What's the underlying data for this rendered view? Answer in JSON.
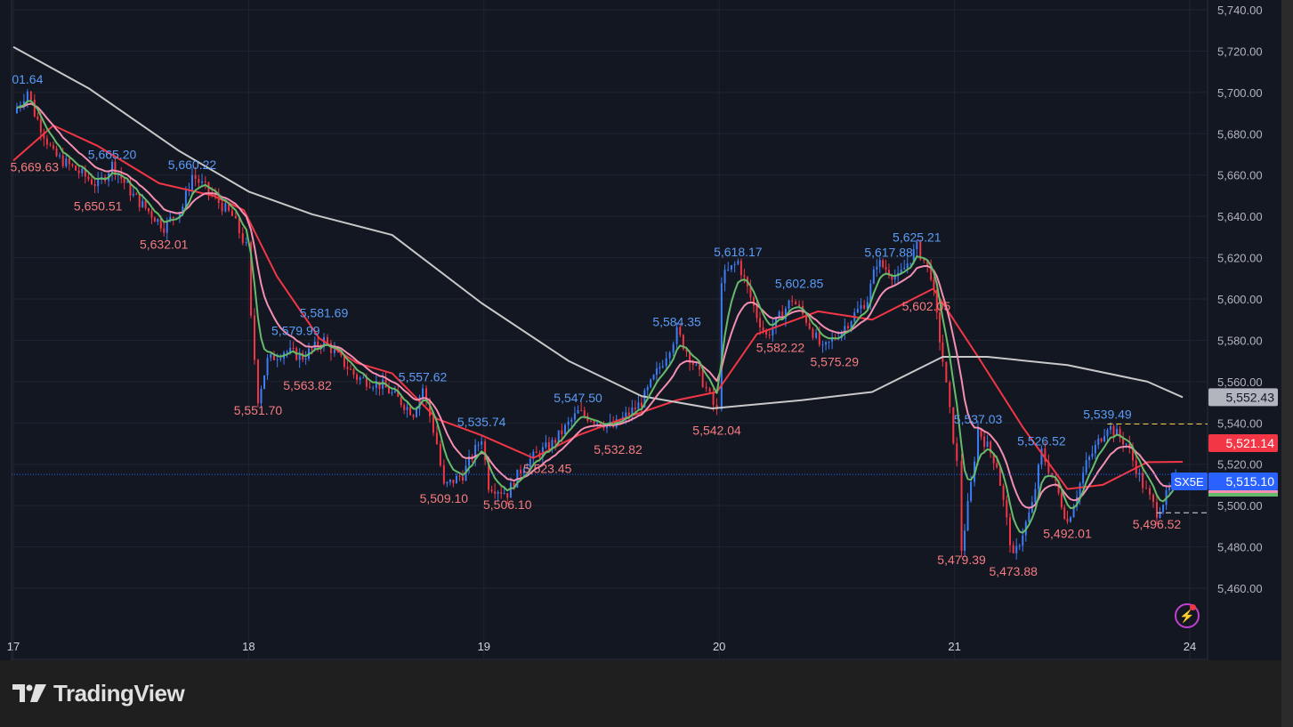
{
  "brand": "TradingView",
  "symbol": "SX5E",
  "colors": {
    "background": "#131722",
    "up": "#3d7df5",
    "down": "#f23645",
    "ma_fast": "#66bb6a",
    "ma_mid": "#f48fb1",
    "ma_slow": "#f23645",
    "ma_long": "#c8c8c8",
    "high_label": "#5b9cf6",
    "low_label": "#f77c80",
    "grid": "#1f2430"
  },
  "chart_data": {
    "type": "candlestick",
    "title": "",
    "xlabel": "",
    "ylabel": "",
    "x_ticks": [
      "17",
      "18",
      "19",
      "20",
      "21",
      "24"
    ],
    "y_ticks": [
      5460,
      5480,
      5500,
      5520,
      5540,
      5560,
      5580,
      5600,
      5620,
      5640,
      5660,
      5680,
      5700,
      5720,
      5740
    ],
    "y_tick_labels": [
      "5,460.00",
      "5,480.00",
      "5,500.00",
      "5,520.00",
      "5,540.00",
      "5,560.00",
      "5,580.00",
      "5,600.00",
      "5,620.00",
      "5,640.00",
      "5,660.00",
      "5,680.00",
      "5,700.00",
      "5,720.00",
      "5,740.00"
    ],
    "ylim": [
      5451,
      5745
    ],
    "grid": true,
    "price_path": [
      [
        17.0,
        5690
      ],
      [
        17.06,
        5701
      ],
      [
        17.09,
        5690
      ],
      [
        17.17,
        5670
      ],
      [
        17.36,
        5655
      ],
      [
        17.42,
        5665
      ],
      [
        17.51,
        5650
      ],
      [
        17.64,
        5635
      ],
      [
        17.72,
        5645
      ],
      [
        17.76,
        5660
      ],
      [
        17.83,
        5652
      ],
      [
        17.93,
        5640
      ],
      [
        17.99,
        5625
      ],
      [
        18.01,
        5590
      ],
      [
        18.04,
        5552
      ],
      [
        18.08,
        5570
      ],
      [
        18.15,
        5575
      ],
      [
        18.23,
        5572
      ],
      [
        18.32,
        5580
      ],
      [
        18.38,
        5572
      ],
      [
        18.46,
        5562
      ],
      [
        18.57,
        5558
      ],
      [
        18.7,
        5545
      ],
      [
        18.74,
        5557
      ],
      [
        18.8,
        5530
      ],
      [
        18.83,
        5509
      ],
      [
        18.91,
        5515
      ],
      [
        18.99,
        5533
      ],
      [
        19.02,
        5510
      ],
      [
        19.1,
        5506
      ],
      [
        19.17,
        5520
      ],
      [
        19.29,
        5530
      ],
      [
        19.4,
        5545
      ],
      [
        19.55,
        5538
      ],
      [
        19.67,
        5550
      ],
      [
        19.76,
        5570
      ],
      [
        19.82,
        5584
      ],
      [
        19.93,
        5560
      ],
      [
        19.99,
        5545
      ],
      [
        20.01,
        5610
      ],
      [
        20.08,
        5618
      ],
      [
        20.16,
        5592
      ],
      [
        20.2,
        5582
      ],
      [
        20.31,
        5600
      ],
      [
        20.37,
        5590
      ],
      [
        20.44,
        5575
      ],
      [
        20.52,
        5585
      ],
      [
        20.63,
        5600
      ],
      [
        20.67,
        5618
      ],
      [
        20.76,
        5610
      ],
      [
        20.84,
        5625
      ],
      [
        20.9,
        5612
      ],
      [
        20.95,
        5570
      ],
      [
        21.01,
        5520
      ],
      [
        21.03,
        5479
      ],
      [
        21.07,
        5510
      ],
      [
        21.1,
        5537
      ],
      [
        21.18,
        5520
      ],
      [
        21.25,
        5474
      ],
      [
        21.33,
        5500
      ],
      [
        21.37,
        5526
      ],
      [
        21.43,
        5510
      ],
      [
        21.48,
        5492
      ],
      [
        21.56,
        5520
      ],
      [
        21.65,
        5539
      ],
      [
        21.73,
        5530
      ],
      [
        21.8,
        5510
      ],
      [
        21.86,
        5497
      ],
      [
        21.94,
        5512
      ]
    ],
    "series": [
      {
        "key": "ma_slow",
        "values": [
          [
            17.0,
            5667
          ],
          [
            17.17,
            5684
          ],
          [
            17.36,
            5674
          ],
          [
            17.62,
            5656
          ],
          [
            17.85,
            5650
          ],
          [
            17.98,
            5643
          ],
          [
            18.12,
            5611
          ],
          [
            18.3,
            5581
          ],
          [
            18.46,
            5569
          ],
          [
            18.61,
            5564
          ],
          [
            18.8,
            5542
          ],
          [
            18.99,
            5534
          ],
          [
            19.21,
            5523
          ],
          [
            19.4,
            5534
          ],
          [
            19.59,
            5542
          ],
          [
            19.82,
            5551
          ],
          [
            19.99,
            5555
          ],
          [
            20.16,
            5583
          ],
          [
            20.42,
            5594
          ],
          [
            20.65,
            5590
          ],
          [
            20.91,
            5605
          ],
          [
            21.1,
            5572
          ],
          [
            21.29,
            5538
          ],
          [
            21.48,
            5508
          ],
          [
            21.63,
            5510
          ],
          [
            21.82,
            5521
          ],
          [
            21.97,
            5521.14
          ]
        ]
      },
      {
        "key": "ma_long",
        "values": [
          [
            17.0,
            5722
          ],
          [
            17.32,
            5702
          ],
          [
            17.7,
            5672
          ],
          [
            18.0,
            5652
          ],
          [
            18.27,
            5641
          ],
          [
            18.61,
            5631
          ],
          [
            18.99,
            5598
          ],
          [
            19.36,
            5570
          ],
          [
            19.67,
            5553
          ],
          [
            19.97,
            5547
          ],
          [
            20.35,
            5551
          ],
          [
            20.65,
            5555
          ],
          [
            20.95,
            5572
          ],
          [
            21.14,
            5572
          ],
          [
            21.48,
            5568
          ],
          [
            21.82,
            5560
          ],
          [
            21.97,
            5552.43
          ]
        ]
      }
    ],
    "annotations": [
      {
        "text": "01.64",
        "t": 17.06,
        "price": 5701.64,
        "kind": "high"
      },
      {
        "text": "5,669.63",
        "t": 17.09,
        "price": 5669.63,
        "kind": "low"
      },
      {
        "text": "5,665.20",
        "t": 17.42,
        "price": 5665.2,
        "kind": "high"
      },
      {
        "text": "5,650.51",
        "t": 17.36,
        "price": 5650.51,
        "kind": "low"
      },
      {
        "text": "5,660.22",
        "t": 17.76,
        "price": 5660.22,
        "kind": "high"
      },
      {
        "text": "5,632.01",
        "t": 17.64,
        "price": 5632.01,
        "kind": "low"
      },
      {
        "text": "5,551.70",
        "t": 18.04,
        "price": 5551.7,
        "kind": "low"
      },
      {
        "text": "5,579.99",
        "t": 18.2,
        "price": 5579.99,
        "kind": "high"
      },
      {
        "text": "5,581.69",
        "t": 18.32,
        "price": 5581.69,
        "kind": "high"
      },
      {
        "text": "5,563.82",
        "t": 18.25,
        "price": 5563.82,
        "kind": "low"
      },
      {
        "text": "5,557.62",
        "t": 18.74,
        "price": 5557.62,
        "kind": "high"
      },
      {
        "text": "5,509.10",
        "t": 18.83,
        "price": 5509.1,
        "kind": "low"
      },
      {
        "text": "5,535.74",
        "t": 18.99,
        "price": 5535.74,
        "kind": "high"
      },
      {
        "text": "5,506.10",
        "t": 19.1,
        "price": 5506.1,
        "kind": "low"
      },
      {
        "text": "5,523.45",
        "t": 19.27,
        "price": 5523.45,
        "kind": "low"
      },
      {
        "text": "5,547.50",
        "t": 19.4,
        "price": 5547.5,
        "kind": "high"
      },
      {
        "text": "5,532.82",
        "t": 19.57,
        "price": 5532.82,
        "kind": "low"
      },
      {
        "text": "5,584.35",
        "t": 19.82,
        "price": 5584.35,
        "kind": "high"
      },
      {
        "text": "5,542.04",
        "t": 19.99,
        "price": 5542.04,
        "kind": "low"
      },
      {
        "text": "5,618.17",
        "t": 20.08,
        "price": 5618.17,
        "kind": "high"
      },
      {
        "text": "5,582.22",
        "t": 20.26,
        "price": 5582.22,
        "kind": "low"
      },
      {
        "text": "5,602.85",
        "t": 20.34,
        "price": 5602.85,
        "kind": "high"
      },
      {
        "text": "5,575.29",
        "t": 20.49,
        "price": 5575.29,
        "kind": "low"
      },
      {
        "text": "5,617.88",
        "t": 20.72,
        "price": 5617.88,
        "kind": "high"
      },
      {
        "text": "5,602.05",
        "t": 20.88,
        "price": 5602.05,
        "kind": "low"
      },
      {
        "text": "5,625.21",
        "t": 20.84,
        "price": 5625.21,
        "kind": "high"
      },
      {
        "text": "5,537.03",
        "t": 21.1,
        "price": 5537.03,
        "kind": "high"
      },
      {
        "text": "5,479.39",
        "t": 21.03,
        "price": 5479.39,
        "kind": "low"
      },
      {
        "text": "5,473.88",
        "t": 21.25,
        "price": 5473.88,
        "kind": "low"
      },
      {
        "text": "5,526.52",
        "t": 21.37,
        "price": 5526.52,
        "kind": "high"
      },
      {
        "text": "5,492.01",
        "t": 21.48,
        "price": 5492.01,
        "kind": "low"
      },
      {
        "text": "5,539.49",
        "t": 21.65,
        "price": 5539.49,
        "kind": "high"
      },
      {
        "text": "5,496.52",
        "t": 21.86,
        "price": 5496.52,
        "kind": "low"
      }
    ],
    "range_high": 5539.49,
    "range_low": 5496.52,
    "price_scale_labels": [
      {
        "text": "5,552.43",
        "price": 5552.43,
        "bg": "#b2b5be",
        "fg": "#131722"
      },
      {
        "text": "5,521.14",
        "price": 5521.14,
        "bg": "#f23645",
        "fg": "#ffffff"
      },
      {
        "text": "5,515.10",
        "price": 5515.1,
        "bg": "#2962ff",
        "fg": "#ffffff"
      }
    ],
    "last_price": 5515.1
  }
}
